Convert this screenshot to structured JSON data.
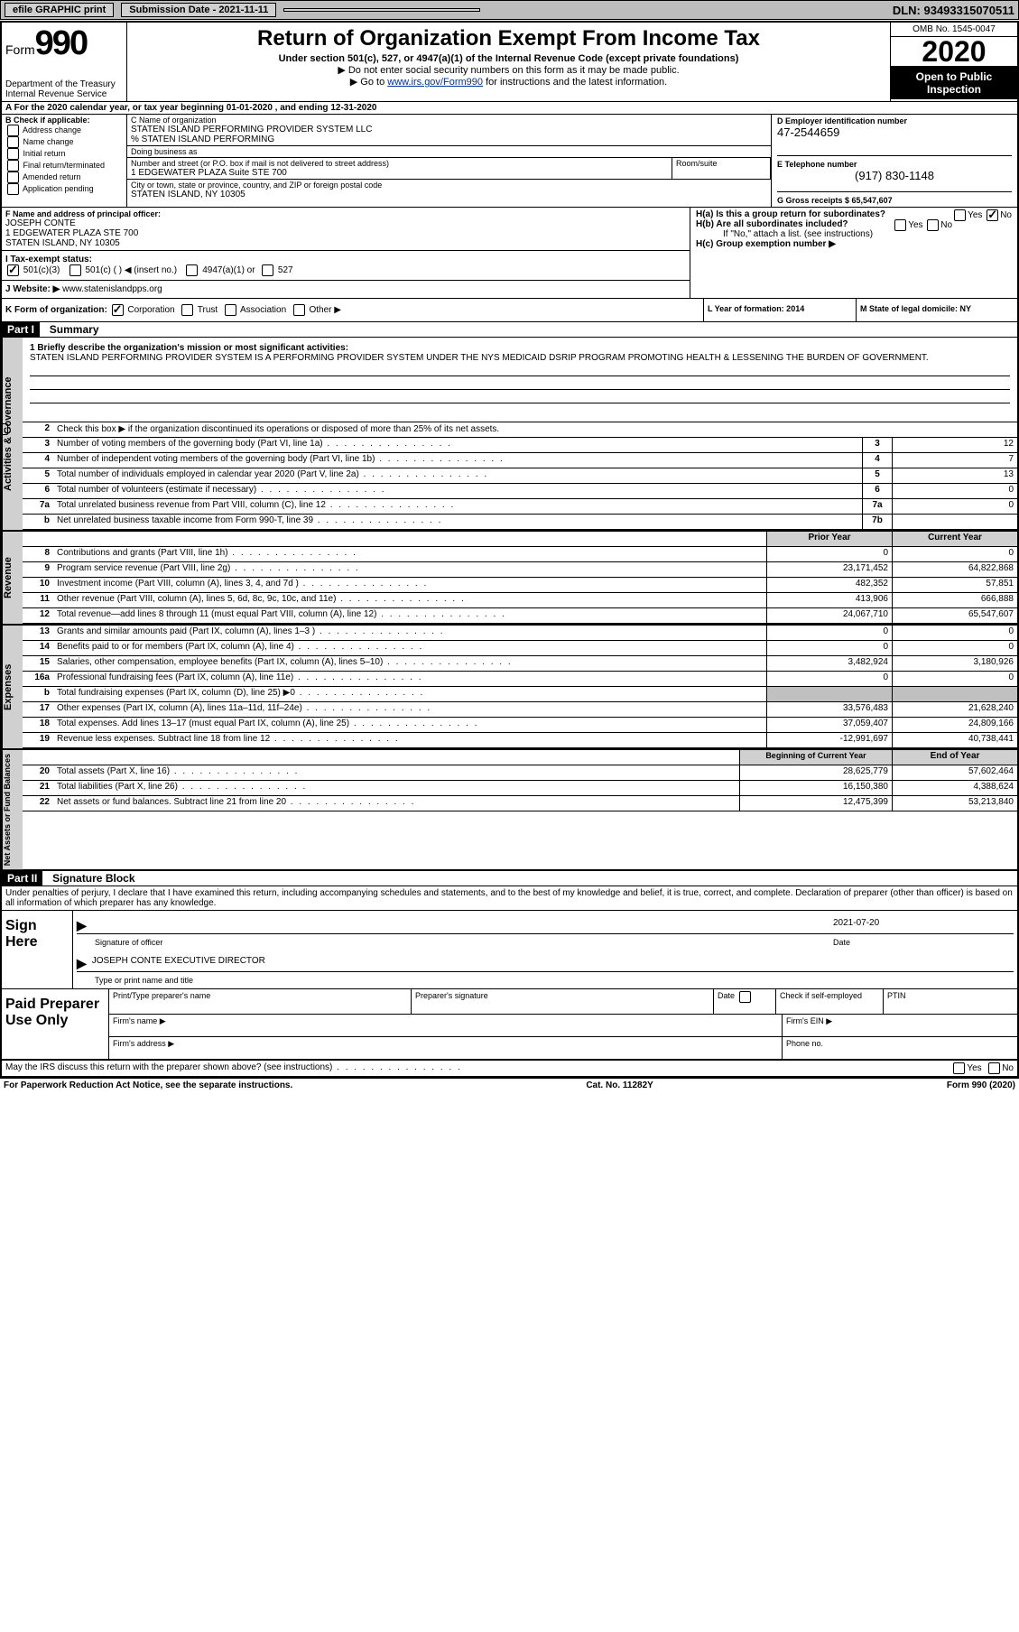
{
  "topbar": {
    "efile_label": "efile GRAPHIC print",
    "submission_label": "Submission Date - 2021-11-11",
    "dln_label": "DLN: 93493315070511"
  },
  "header": {
    "form_label": "Form",
    "form_number": "990",
    "dept": "Department of the Treasury",
    "irs": "Internal Revenue Service",
    "title": "Return of Organization Exempt From Income Tax",
    "subtitle": "Under section 501(c), 527, or 4947(a)(1) of the Internal Revenue Code (except private foundations)",
    "note1": "▶ Do not enter social security numbers on this form as it may be made public.",
    "note2_prefix": "▶ Go to ",
    "note2_link": "www.irs.gov/Form990",
    "note2_suffix": " for instructions and the latest information.",
    "omb": "OMB No. 1545-0047",
    "year": "2020",
    "open_public": "Open to Public Inspection"
  },
  "line_a": "A For the 2020 calendar year, or tax year beginning 01-01-2020   , and ending 12-31-2020",
  "block_b": {
    "label": "B Check if applicable:",
    "items": [
      "Address change",
      "Name change",
      "Initial return",
      "Final return/terminated",
      "Amended return",
      "Application pending"
    ]
  },
  "block_c": {
    "name_label": "C Name of organization",
    "name": "STATEN ISLAND PERFORMING PROVIDER SYSTEM LLC",
    "care_of": "% STATEN ISLAND PERFORMING",
    "dba_label": "Doing business as",
    "street_label": "Number and street (or P.O. box if mail is not delivered to street address)",
    "street": "1 EDGEWATER PLAZA Suite STE 700",
    "room_label": "Room/suite",
    "city_label": "City or town, state or province, country, and ZIP or foreign postal code",
    "city": "STATEN ISLAND, NY  10305"
  },
  "block_d": {
    "label": "D Employer identification number",
    "value": "47-2544659"
  },
  "block_e": {
    "label": "E Telephone number",
    "value": "(917) 830-1148"
  },
  "block_g": {
    "label": "G Gross receipts $ 65,547,607"
  },
  "block_f": {
    "label": "F  Name and address of principal officer:",
    "name": "JOSEPH CONTE",
    "addr1": "1 EDGEWATER PLAZA STE 700",
    "addr2": "STATEN ISLAND, NY  10305"
  },
  "block_h": {
    "a_label": "H(a)  Is this a group return for subordinates?",
    "b_label": "H(b)  Are all subordinates included?",
    "b_note": "If \"No,\" attach a list. (see instructions)",
    "c_label": "H(c)  Group exemption number ▶",
    "yes": "Yes",
    "no": "No"
  },
  "block_i": {
    "label": "I  Tax-exempt status:",
    "opts": [
      "501(c)(3)",
      "501(c) (  ) ◀ (insert no.)",
      "4947(a)(1) or",
      "527"
    ]
  },
  "block_j": {
    "label": "J  Website: ▶",
    "value": "www.statenislandpps.org"
  },
  "block_k": {
    "label": "K Form of organization:",
    "opts": [
      "Corporation",
      "Trust",
      "Association",
      "Other ▶"
    ]
  },
  "block_l": {
    "label": "L Year of formation: 2014"
  },
  "block_m": {
    "label": "M State of legal domicile: NY"
  },
  "part1": {
    "header": "Part I",
    "title": "Summary",
    "mission_label": "1  Briefly describe the organization's mission or most significant activities:",
    "mission": "STATEN ISLAND PERFORMING PROVIDER SYSTEM IS A PERFORMING PROVIDER SYSTEM UNDER THE NYS MEDICAID DSRIP PROGRAM PROMOTING HEALTH & LESSENING THE BURDEN OF GOVERNMENT.",
    "line2": "Check this box ▶       if the organization discontinued its operations or disposed of more than 25% of its net assets.",
    "governance_rows": [
      {
        "n": "3",
        "d": "Number of voting members of the governing body (Part VI, line 1a)",
        "box": "3",
        "v": "12"
      },
      {
        "n": "4",
        "d": "Number of independent voting members of the governing body (Part VI, line 1b)",
        "box": "4",
        "v": "7"
      },
      {
        "n": "5",
        "d": "Total number of individuals employed in calendar year 2020 (Part V, line 2a)",
        "box": "5",
        "v": "13"
      },
      {
        "n": "6",
        "d": "Total number of volunteers (estimate if necessary)",
        "box": "6",
        "v": "0"
      },
      {
        "n": "7a",
        "d": "Total unrelated business revenue from Part VIII, column (C), line 12",
        "box": "7a",
        "v": "0"
      },
      {
        "n": "b",
        "d": "Net unrelated business taxable income from Form 990-T, line 39",
        "box": "7b",
        "v": ""
      }
    ],
    "col_prior": "Prior Year",
    "col_current": "Current Year",
    "revenue_rows": [
      {
        "n": "8",
        "d": "Contributions and grants (Part VIII, line 1h)",
        "p": "0",
        "c": "0"
      },
      {
        "n": "9",
        "d": "Program service revenue (Part VIII, line 2g)",
        "p": "23,171,452",
        "c": "64,822,868"
      },
      {
        "n": "10",
        "d": "Investment income (Part VIII, column (A), lines 3, 4, and 7d )",
        "p": "482,352",
        "c": "57,851"
      },
      {
        "n": "11",
        "d": "Other revenue (Part VIII, column (A), lines 5, 6d, 8c, 9c, 10c, and 11e)",
        "p": "413,906",
        "c": "666,888"
      },
      {
        "n": "12",
        "d": "Total revenue—add lines 8 through 11 (must equal Part VIII, column (A), line 12)",
        "p": "24,067,710",
        "c": "65,547,607"
      }
    ],
    "expense_rows": [
      {
        "n": "13",
        "d": "Grants and similar amounts paid (Part IX, column (A), lines 1–3 )",
        "p": "0",
        "c": "0"
      },
      {
        "n": "14",
        "d": "Benefits paid to or for members (Part IX, column (A), line 4)",
        "p": "0",
        "c": "0"
      },
      {
        "n": "15",
        "d": "Salaries, other compensation, employee benefits (Part IX, column (A), lines 5–10)",
        "p": "3,482,924",
        "c": "3,180,926"
      },
      {
        "n": "16a",
        "d": "Professional fundraising fees (Part IX, column (A), line 11e)",
        "p": "0",
        "c": "0"
      },
      {
        "n": "b",
        "d": "Total fundraising expenses (Part IX, column (D), line 25) ▶0",
        "p": "",
        "c": "",
        "shaded": true
      },
      {
        "n": "17",
        "d": "Other expenses (Part IX, column (A), lines 11a–11d, 11f–24e)",
        "p": "33,576,483",
        "c": "21,628,240"
      },
      {
        "n": "18",
        "d": "Total expenses. Add lines 13–17 (must equal Part IX, column (A), line 25)",
        "p": "37,059,407",
        "c": "24,809,166"
      },
      {
        "n": "19",
        "d": "Revenue less expenses. Subtract line 18 from line 12",
        "p": "-12,991,697",
        "c": "40,738,441"
      }
    ],
    "col_begin": "Beginning of Current Year",
    "col_end": "End of Year",
    "netassets_rows": [
      {
        "n": "20",
        "d": "Total assets (Part X, line 16)",
        "p": "28,625,779",
        "c": "57,602,464"
      },
      {
        "n": "21",
        "d": "Total liabilities (Part X, line 26)",
        "p": "16,150,380",
        "c": "4,388,624"
      },
      {
        "n": "22",
        "d": "Net assets or fund balances. Subtract line 21 from line 20",
        "p": "12,475,399",
        "c": "53,213,840"
      }
    ]
  },
  "part2": {
    "header": "Part II",
    "title": "Signature Block",
    "penalty": "Under penalties of perjury, I declare that I have examined this return, including accompanying schedules and statements, and to the best of my knowledge and belief, it is true, correct, and complete. Declaration of preparer (other than officer) is based on all information of which preparer has any knowledge.",
    "sign_here": "Sign Here",
    "date": "2021-07-20",
    "sig_officer": "Signature of officer",
    "date_label": "Date",
    "officer_name": "JOSEPH CONTE  EXECUTIVE DIRECTOR",
    "type_label": "Type or print name and title",
    "paid_label": "Paid Preparer Use Only",
    "prep_name_label": "Print/Type preparer's name",
    "prep_sig_label": "Preparer's signature",
    "prep_date_label": "Date",
    "check_if": "Check        if self-employed",
    "ptin": "PTIN",
    "firm_name": "Firm's name   ▶",
    "firm_ein": "Firm's EIN ▶",
    "firm_addr": "Firm's address ▶",
    "phone": "Phone no.",
    "discuss": "May the IRS discuss this return with the preparer shown above? (see instructions)",
    "paperwork": "For Paperwork Reduction Act Notice, see the separate instructions.",
    "cat": "Cat. No. 11282Y",
    "form_footer": "Form 990 (2020)"
  },
  "side_labels": {
    "gov": "Activities & Governance",
    "rev": "Revenue",
    "exp": "Expenses",
    "net": "Net Assets or Fund Balances"
  }
}
